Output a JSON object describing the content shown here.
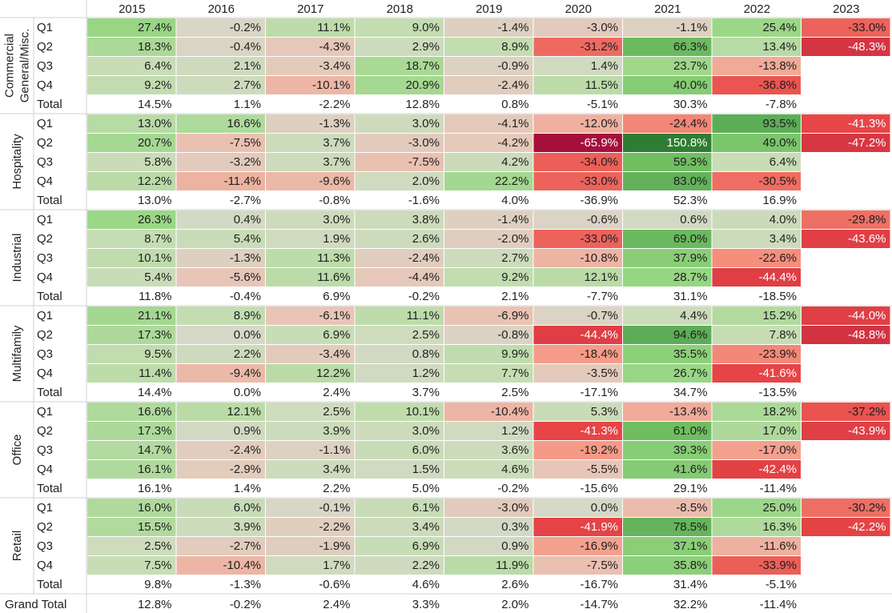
{
  "chart_data": {
    "type": "heatmap",
    "years": [
      "2015",
      "2016",
      "2017",
      "2018",
      "2019",
      "2020",
      "2021",
      "2022",
      "2023"
    ],
    "quarters": [
      "Q1",
      "Q2",
      "Q3",
      "Q4"
    ],
    "total_label": "Total",
    "grand_total_label": "Grand Total",
    "color_scale": {
      "negative": "#a50f3c",
      "neutral": "#d6d8c8",
      "positive": "#2e7d32"
    },
    "segments": [
      {
        "name": "Commercial General/Misc.",
        "name_lines": [
          "Commercial",
          "General/Misc."
        ],
        "values": [
          [
            27.4,
            -0.2,
            11.1,
            9.0,
            -1.4,
            -3.0,
            -1.1,
            25.4,
            -33.0
          ],
          [
            18.3,
            -0.4,
            -4.3,
            2.9,
            8.9,
            -31.2,
            66.3,
            13.4,
            -48.3
          ],
          [
            6.4,
            2.1,
            -3.4,
            18.7,
            -0.9,
            1.4,
            23.7,
            -13.8,
            null
          ],
          [
            9.2,
            2.7,
            -10.1,
            20.9,
            -2.4,
            11.5,
            40.0,
            -36.8,
            null
          ]
        ],
        "total": [
          14.5,
          1.1,
          -2.2,
          12.8,
          0.8,
          -5.1,
          30.3,
          -7.8,
          null
        ]
      },
      {
        "name": "Hospitality",
        "name_lines": [
          "Hospitality"
        ],
        "values": [
          [
            13.0,
            16.6,
            -1.3,
            3.0,
            -4.1,
            -12.0,
            -24.4,
            93.5,
            -41.3
          ],
          [
            20.7,
            -7.5,
            3.7,
            -3.0,
            -4.2,
            -65.9,
            150.8,
            49.0,
            -47.2
          ],
          [
            5.8,
            -3.2,
            3.7,
            -7.5,
            4.2,
            -34.0,
            59.3,
            6.4,
            null
          ],
          [
            12.2,
            -11.4,
            -9.6,
            2.0,
            22.2,
            -33.0,
            83.0,
            -30.5,
            null
          ]
        ],
        "total": [
          13.0,
          -2.7,
          -0.8,
          -1.6,
          4.0,
          -36.9,
          52.3,
          16.9,
          null
        ]
      },
      {
        "name": "Industrial",
        "name_lines": [
          "Industrial"
        ],
        "values": [
          [
            26.3,
            0.4,
            3.0,
            3.8,
            -1.4,
            -0.6,
            0.6,
            4.0,
            -29.8
          ],
          [
            8.7,
            5.4,
            1.9,
            2.6,
            -2.0,
            -33.0,
            69.0,
            3.4,
            -43.6
          ],
          [
            10.1,
            -1.3,
            11.3,
            -2.4,
            2.7,
            -10.8,
            37.9,
            -22.6,
            null
          ],
          [
            5.4,
            -5.6,
            11.6,
            -4.4,
            9.2,
            12.1,
            28.7,
            -44.4,
            null
          ]
        ],
        "total": [
          11.8,
          -0.4,
          6.9,
          -0.2,
          2.1,
          -7.7,
          31.1,
          -18.5,
          null
        ]
      },
      {
        "name": "Multifamily",
        "name_lines": [
          "Multifamily"
        ],
        "values": [
          [
            21.1,
            8.9,
            -6.1,
            11.1,
            -6.9,
            -0.7,
            4.4,
            15.2,
            -44.0
          ],
          [
            17.3,
            0.0,
            6.9,
            2.5,
            -0.8,
            -44.4,
            94.6,
            7.8,
            -48.8
          ],
          [
            9.5,
            2.2,
            -3.4,
            0.8,
            9.9,
            -18.4,
            35.5,
            -23.9,
            null
          ],
          [
            11.4,
            -9.4,
            12.2,
            1.2,
            7.7,
            -3.5,
            26.7,
            -41.6,
            null
          ]
        ],
        "total": [
          14.4,
          0.0,
          2.4,
          3.7,
          2.5,
          -17.1,
          34.7,
          -13.5,
          null
        ]
      },
      {
        "name": "Office",
        "name_lines": [
          "Office"
        ],
        "values": [
          [
            16.6,
            12.1,
            2.5,
            10.1,
            -10.4,
            5.3,
            -13.4,
            18.2,
            -37.2
          ],
          [
            17.3,
            0.9,
            3.9,
            3.0,
            1.2,
            -41.3,
            61.0,
            17.0,
            -43.9
          ],
          [
            14.7,
            -2.4,
            -1.1,
            6.0,
            3.6,
            -19.2,
            39.3,
            -17.0,
            null
          ],
          [
            16.1,
            -2.9,
            3.4,
            1.5,
            4.6,
            -5.5,
            41.6,
            -42.4,
            null
          ]
        ],
        "total": [
          16.1,
          1.4,
          2.2,
          5.0,
          -0.2,
          -15.6,
          29.1,
          -11.4,
          null
        ]
      },
      {
        "name": "Retail",
        "name_lines": [
          "Retail"
        ],
        "values": [
          [
            16.0,
            6.0,
            -0.1,
            6.1,
            -3.0,
            0.0,
            -8.5,
            25.0,
            -30.2
          ],
          [
            15.5,
            3.9,
            -2.2,
            3.4,
            0.3,
            -41.9,
            78.5,
            16.3,
            -42.2
          ],
          [
            2.5,
            -2.7,
            -1.9,
            6.9,
            0.9,
            -16.9,
            37.1,
            -11.6,
            null
          ],
          [
            7.5,
            -10.4,
            1.7,
            2.2,
            11.9,
            -7.5,
            35.8,
            -33.9,
            null
          ]
        ],
        "total": [
          9.8,
          -1.3,
          -0.6,
          4.6,
          2.6,
          -16.7,
          31.4,
          -5.1,
          null
        ]
      }
    ],
    "grand_total": [
      12.8,
      -0.2,
      2.4,
      3.3,
      2.0,
      -14.7,
      32.2,
      -11.4,
      null
    ]
  }
}
